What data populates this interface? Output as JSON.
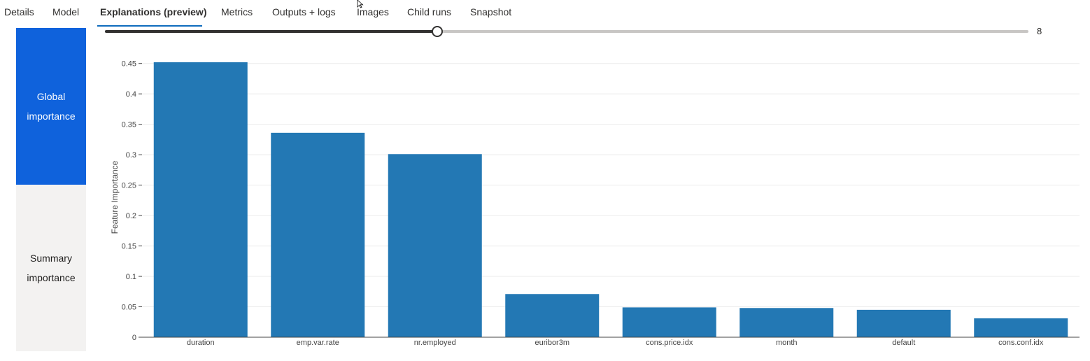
{
  "tabs": [
    {
      "label": "Details",
      "active": false
    },
    {
      "label": "Model",
      "active": false
    },
    {
      "label": "Explanations (preview)",
      "active": true
    },
    {
      "label": "Metrics",
      "active": false
    },
    {
      "label": "Outputs + logs",
      "active": false
    },
    {
      "label": "Images",
      "active": false
    },
    {
      "label": "Child runs",
      "active": false
    },
    {
      "label": "Snapshot",
      "active": false
    }
  ],
  "slider": {
    "value": "8",
    "fraction": 0.36
  },
  "side_panel": {
    "global_label_line1": "Global",
    "global_label_line2": "importance",
    "summary_label_line1": "Summary",
    "summary_label_line2": "importance"
  },
  "colors": {
    "bar": "#2378b4",
    "active_tab_underline": "#0f6cbd",
    "side_active": "#0f62dc"
  },
  "chart_data": {
    "type": "bar",
    "categories": [
      "duration",
      "emp.var.rate",
      "nr.employed",
      "euribor3m",
      "cons.price.idx",
      "month",
      "default",
      "cons.conf.idx"
    ],
    "values": [
      0.452,
      0.336,
      0.301,
      0.071,
      0.049,
      0.048,
      0.045,
      0.031
    ],
    "yticks": [
      "0",
      "0.05",
      "0.1",
      "0.15",
      "0.2",
      "0.25",
      "0.3",
      "0.35",
      "0.4",
      "0.45"
    ],
    "ytick_values": [
      0,
      0.05,
      0.1,
      0.15,
      0.2,
      0.25,
      0.3,
      0.35,
      0.4,
      0.45
    ],
    "ylabel": "Feature Importance",
    "xlabel": "",
    "title": "",
    "ylim": [
      0,
      0.46
    ],
    "grid": true
  }
}
